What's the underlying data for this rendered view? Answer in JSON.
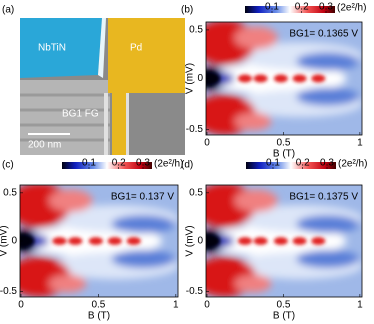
{
  "panel_a": {
    "label": "(a)",
    "nbtin": "NbTiN",
    "pd": "Pd",
    "gate": "BG1 FG",
    "scale": "200 nm"
  },
  "maps": [
    {
      "label": "(b)",
      "colorbar": {
        "ticks": [
          "0.1",
          "0.2",
          "0.3"
        ],
        "unit": "(2e²/h)"
      },
      "annotation": "BG1= 0.1365 V",
      "y_axis": {
        "label": "V (mV)",
        "ticks": [
          "0.5",
          "0",
          "-0.5"
        ]
      },
      "x_axis": {
        "label": "B (T)",
        "ticks": [
          "0",
          "0.5",
          "1"
        ]
      }
    },
    {
      "label": "(c)",
      "colorbar": {
        "ticks": [
          "0.1",
          "0.2",
          "0.3"
        ],
        "unit": "(2e²/h)"
      },
      "annotation": "BG1= 0.137 V",
      "y_axis": {
        "label": "V (mV)",
        "ticks": [
          "0.5",
          "0",
          "-0.5"
        ]
      },
      "x_axis": {
        "label": "B (T)",
        "ticks": [
          "0",
          "0.5",
          "1"
        ]
      }
    },
    {
      "label": "(d)",
      "colorbar": {
        "ticks": [
          "0.1",
          "0.2",
          "0.3"
        ],
        "unit": "(2e²/h)"
      },
      "annotation": "BG1= 0.1375 V",
      "y_axis": {
        "label": "V (mV)",
        "ticks": [
          "0.5",
          "0",
          "-0.5"
        ]
      },
      "x_axis": {
        "label": "B (T)",
        "ticks": [
          "0",
          "0.5",
          "1"
        ]
      }
    }
  ]
}
